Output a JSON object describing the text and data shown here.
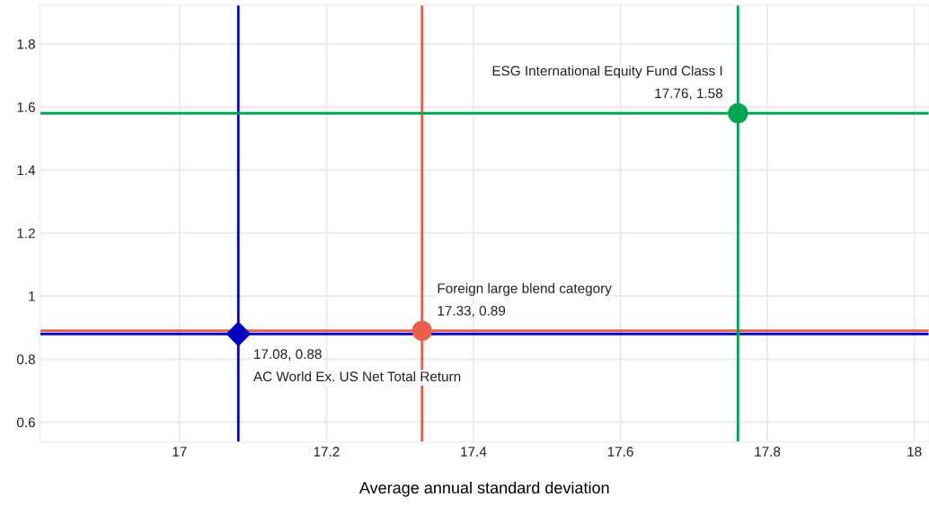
{
  "chart_data": {
    "type": "scatter",
    "xlabel": "Average annual standard deviation",
    "xlim": [
      16.81,
      18.02
    ],
    "xticks": [
      17,
      17.2,
      17.4,
      17.6,
      17.8,
      18
    ],
    "ylim": [
      0.537,
      1.923
    ],
    "yticks": [
      {
        "value": 0.6,
        "label": "0.6"
      },
      {
        "value": 0.8,
        "label": "0.8"
      },
      1,
      {
        "value": 1.2,
        "label": "1.2"
      },
      {
        "value": 1.4,
        "label": "1.4"
      },
      {
        "value": 1.6,
        "label": "1.6"
      },
      {
        "value": 1.8,
        "label": "1.8"
      }
    ],
    "grid": true,
    "series": [
      {
        "name": "AC World Ex. US Net Total Return",
        "color": "#0000c0",
        "marker": "diamond",
        "x": [
          17.08
        ],
        "values": [
          0.88
        ],
        "value_labels": [
          "17.08, 0.88"
        ]
      },
      {
        "name": "Foreign large blend category",
        "color": "#e8604c",
        "marker": "circle",
        "x": [
          17.33
        ],
        "values": [
          0.89
        ],
        "value_labels": [
          "17.33, 0.89"
        ]
      },
      {
        "name": "ESG International Equity Fund Class I",
        "color": "#00a651",
        "marker": "circle",
        "x": [
          17.76
        ],
        "values": [
          1.58
        ],
        "value_labels": [
          "17.76, 1.58"
        ]
      }
    ],
    "ref_lines": [
      {
        "axis": "x",
        "value": 17.08,
        "color": "#0000c0"
      },
      {
        "axis": "y",
        "value": 0.88,
        "color": "#0000c0"
      },
      {
        "axis": "x",
        "value": 17.33,
        "color": "#e8604c"
      },
      {
        "axis": "y",
        "value": 0.89,
        "color": "#e8604c"
      },
      {
        "axis": "x",
        "value": 17.76,
        "color": "#00a651"
      },
      {
        "axis": "y",
        "value": 1.58,
        "color": "#00a651"
      }
    ]
  }
}
